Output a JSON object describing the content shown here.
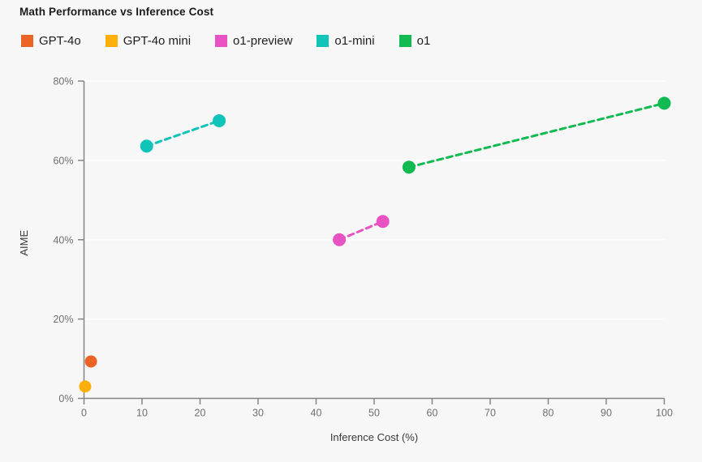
{
  "page": {
    "background": "#F7F7F8"
  },
  "header": {
    "title": "Math Performance vs Inference Cost"
  },
  "chart_data": {
    "type": "scatter",
    "title": "Math Performance vs Inference Cost",
    "xlabel": "Inference Cost (%)",
    "ylabel": "AIME",
    "xlim": [
      0,
      100
    ],
    "ylim": [
      0,
      80
    ],
    "x_ticks": [
      0,
      10,
      20,
      30,
      40,
      50,
      60,
      70,
      80,
      90,
      100
    ],
    "y_ticks": [
      0,
      20,
      40,
      60,
      80
    ],
    "y_tick_suffix": "%",
    "grid": "horizontal-only",
    "grid_color": "#FCFCFC",
    "axis_color": "#858585",
    "tick_label_color": "#6F6F6F",
    "axis_title_color": "#3A3A3A",
    "legend_position": "top",
    "line_style": "dashed",
    "series": [
      {
        "name": "GPT-4o",
        "color": "#EC6425",
        "points": [
          {
            "x": 1.2,
            "y": 9.3
          }
        ]
      },
      {
        "name": "GPT-4o mini",
        "color": "#FFAF0A",
        "points": [
          {
            "x": 0.2,
            "y": 3.0
          }
        ]
      },
      {
        "name": "o1-preview",
        "color": "#E853C4",
        "points": [
          {
            "x": 44,
            "y": 40.0
          },
          {
            "x": 51.5,
            "y": 44.6
          }
        ]
      },
      {
        "name": "o1-mini",
        "color": "#10C4BA",
        "points": [
          {
            "x": 10.8,
            "y": 63.6
          },
          {
            "x": 23.3,
            "y": 70.0
          }
        ]
      },
      {
        "name": "o1",
        "color": "#12BB51",
        "points": [
          {
            "x": 56,
            "y": 58.3
          },
          {
            "x": 100,
            "y": 74.4
          }
        ]
      }
    ]
  }
}
